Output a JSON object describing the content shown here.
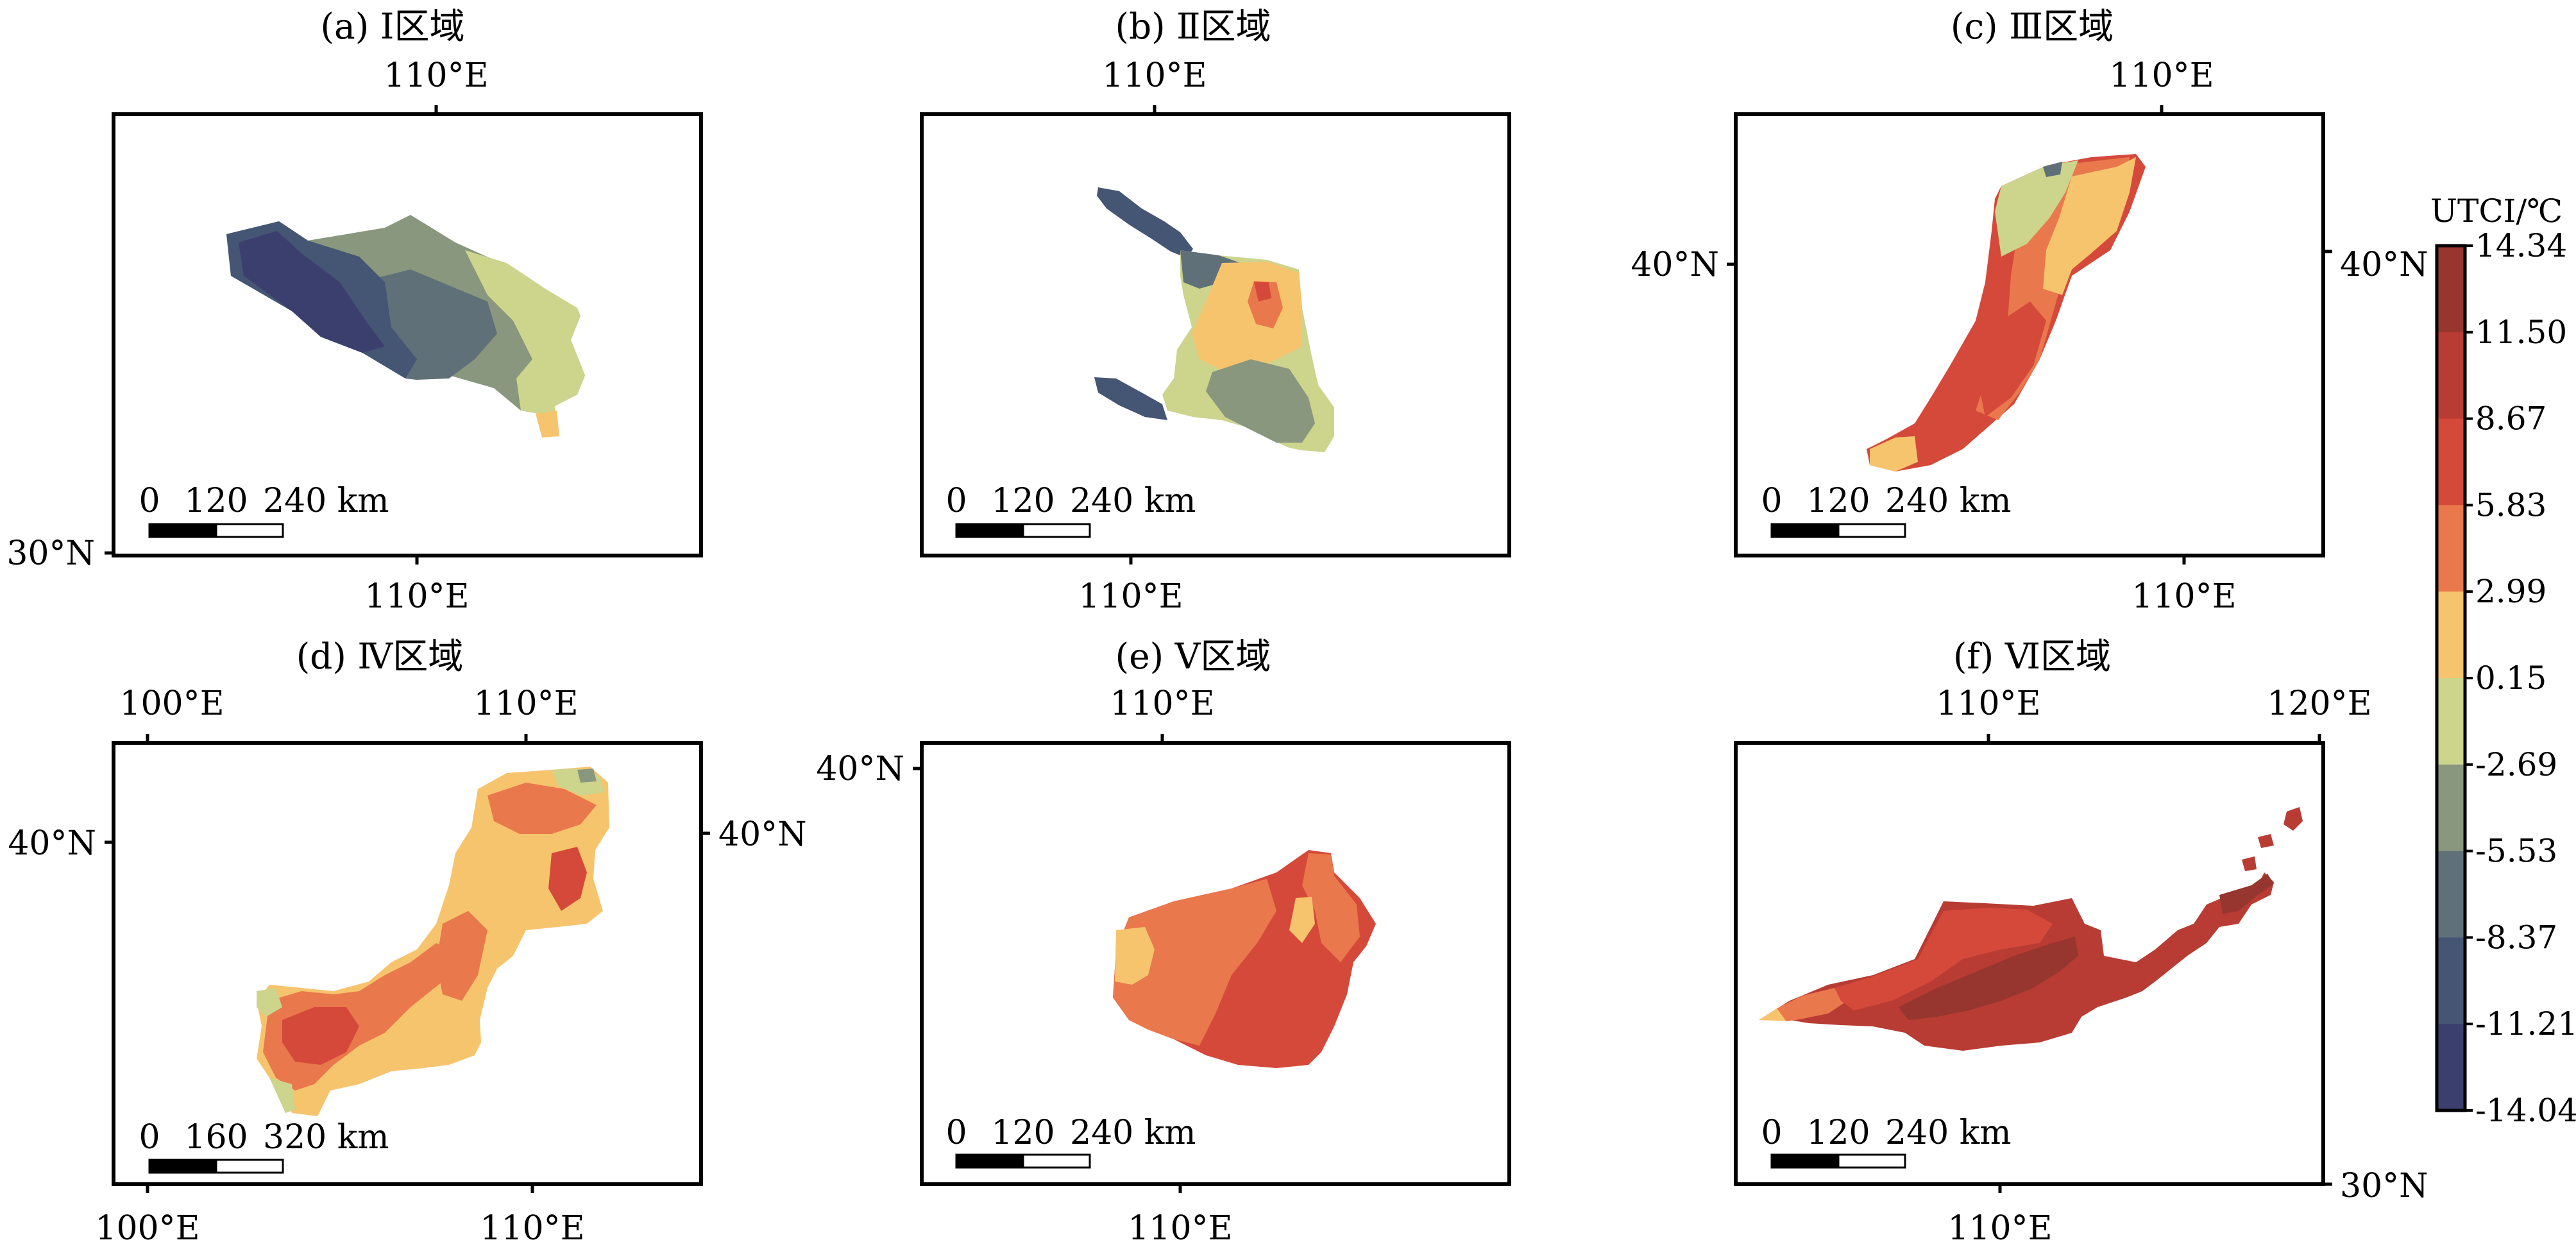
{
  "colorbar": {
    "title": "UTCI/℃",
    "ticks": [
      "14.34",
      "11.50",
      "8.67",
      "5.83",
      "2.99",
      "0.15",
      "-2.69",
      "-5.53",
      "-8.37",
      "-11.21",
      "-14.04"
    ],
    "colors": [
      "#96362f",
      "#b83c33",
      "#d5493a",
      "#e9784c",
      "#f7c46e",
      "#cdd48c",
      "#8a977f",
      "#5f7079",
      "#455574",
      "#3b3f6e"
    ]
  },
  "panels": [
    {
      "title": "(a) Ⅰ区域",
      "top_ticks": [
        "110°E"
      ],
      "bottom_ticks": [
        "110°E"
      ],
      "left_ticks": [
        "30°N"
      ],
      "right_ticks": [],
      "scale_labels": [
        "0",
        "120",
        "240 km"
      ],
      "region_colors": [
        "#3b3f6e",
        "#455574",
        "#5f7079",
        "#8a977f",
        "#cdd48c",
        "#f7c46e"
      ]
    },
    {
      "title": "(b) Ⅱ区域",
      "top_ticks": [
        "110°E"
      ],
      "bottom_ticks": [
        "110°E"
      ],
      "left_ticks": [],
      "right_ticks": [],
      "scale_labels": [
        "0",
        "120",
        "240 km"
      ],
      "region_colors": [
        "#455574",
        "#5f7079",
        "#8a977f",
        "#cdd48c",
        "#f7c46e",
        "#e9784c",
        "#d5493a"
      ]
    },
    {
      "title": "(c) Ⅲ区域",
      "top_ticks": [
        "110°E"
      ],
      "bottom_ticks": [
        "110°E"
      ],
      "left_ticks": [
        "40°N"
      ],
      "right_ticks": [
        "40°N"
      ],
      "scale_labels": [
        "0",
        "120",
        "240 km"
      ],
      "region_colors": [
        "#5f7079",
        "#cdd48c",
        "#f7c46e",
        "#e9784c",
        "#d5493a"
      ]
    },
    {
      "title": "(d) Ⅳ区域",
      "top_ticks": [
        "100°E",
        "110°E"
      ],
      "bottom_ticks": [
        "100°E",
        "110°E"
      ],
      "left_ticks": [
        "40°N"
      ],
      "right_ticks": [
        "40°N"
      ],
      "scale_labels": [
        "0",
        "160",
        "320 km"
      ],
      "region_colors": [
        "#cdd48c",
        "#f7c46e",
        "#e9784c",
        "#d5493a",
        "#8a977f"
      ]
    },
    {
      "title": "(e) Ⅴ区域",
      "top_ticks": [
        "110°E"
      ],
      "bottom_ticks": [
        "110°E"
      ],
      "left_ticks": [
        "40°N"
      ],
      "right_ticks": [],
      "scale_labels": [
        "0",
        "120",
        "240 km"
      ],
      "region_colors": [
        "#f7c46e",
        "#e9784c",
        "#d5493a"
      ]
    },
    {
      "title": "(f) Ⅵ区域",
      "top_ticks": [
        "110°E",
        "120°E"
      ],
      "bottom_ticks": [
        "110°E"
      ],
      "left_ticks": [],
      "right_ticks": [
        "30°N"
      ],
      "scale_labels": [
        "0",
        "120",
        "240 km"
      ],
      "region_colors": [
        "#f7c46e",
        "#e9784c",
        "#d5493a",
        "#b83c33",
        "#96362f"
      ]
    }
  ]
}
